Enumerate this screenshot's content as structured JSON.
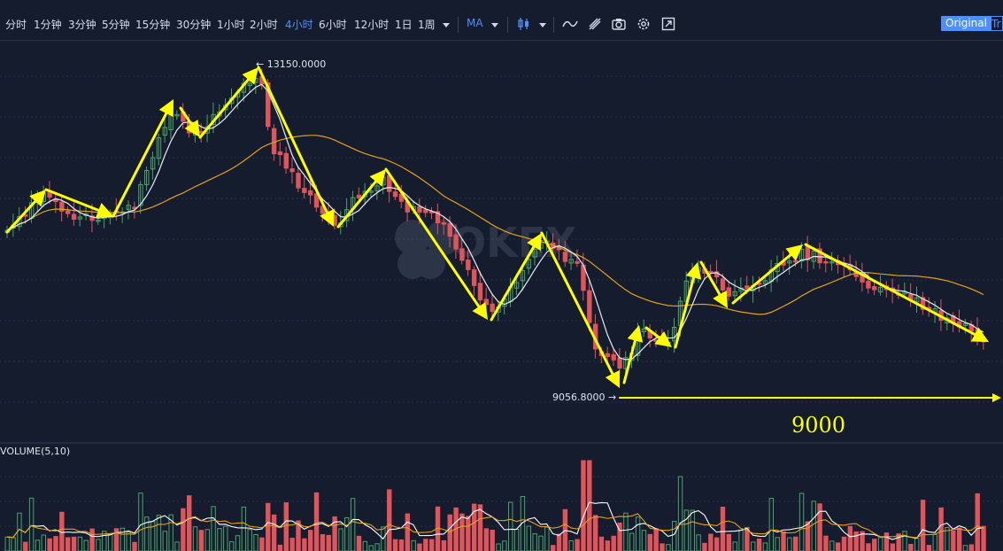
{
  "toolbar": {
    "intervals": [
      "分时",
      "1分钟",
      "3分钟",
      "5分钟",
      "15分钟",
      "30分钟",
      "1小时",
      "2小时",
      "4小时",
      "6小时",
      "12小时",
      "1日",
      "1周"
    ],
    "active_interval": "4小时",
    "indicator_label": "MA",
    "original_button": "Original",
    "tradingview_button": "Tr",
    "icons": [
      "candle-type-icon",
      "indicator-icon",
      "drawing-tool-icon",
      "camera-icon",
      "settings-icon",
      "fullscreen-icon"
    ]
  },
  "price_chart": {
    "high_label": "13150.0000",
    "low_label": "9056.8000",
    "annotation": "9000",
    "watermark": "OKEX",
    "colors": {
      "up": "#4aa36a",
      "down": "#e0555b",
      "ma_fast": "#e8eef8",
      "ma_slow": "#e5a11a",
      "arrow": "#ffff00",
      "annotation": "#ffff00"
    }
  },
  "volume_chart": {
    "label": "VOLUME(5,10)"
  }
}
